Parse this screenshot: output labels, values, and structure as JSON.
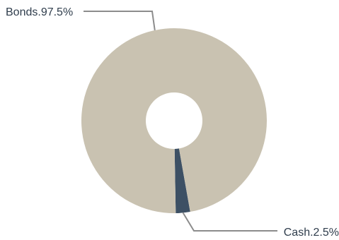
{
  "chart_data": {
    "type": "pie",
    "donut": true,
    "slices": [
      {
        "label": "Bonds",
        "value": 97.5,
        "color": "#c9c2b1",
        "display": "Bonds.97.5%"
      },
      {
        "label": "Cash",
        "value": 2.5,
        "color": "#3d5064",
        "display": "Cash.2.5%"
      }
    ],
    "leader_line_color": "#8c8c8c"
  }
}
